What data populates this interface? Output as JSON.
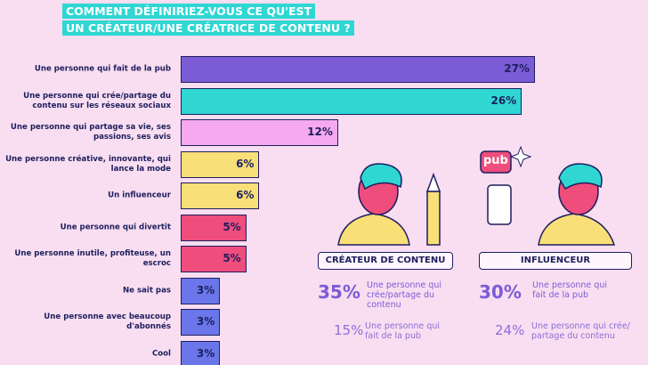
{
  "chart_data": {
    "type": "hbar",
    "title": [
      "COMMENT DÉFINIRIEZ-VOUS CE QU'EST",
      "UN CRÉATEUR/UNE CRÉATRICE DE CONTENU ?"
    ],
    "categories": [
      "Une personne qui fait de la pub",
      "Une personne qui crée/partage du contenu sur les réseaux sociaux",
      "Une personne qui partage sa vie, ses passions, ses avis",
      "Une personne créative, innovante, qui lance la mode",
      "Un influenceur",
      "Une personne qui divertit",
      "Une personne inutile, profiteuse, un escroc",
      "Ne sait pas",
      "Une personne avec beaucoup d'abonnés",
      "Cool"
    ],
    "values": [
      27,
      26,
      12,
      6,
      6,
      5,
      5,
      3,
      3,
      3
    ],
    "value_labels": [
      "27%",
      "26%",
      "12%",
      "6%",
      "6%",
      "5%",
      "5%",
      "3%",
      "3%",
      "3%"
    ],
    "colors": [
      "#7b5cd6",
      "#2fd6d2",
      "#f6a9ee",
      "#f8df78",
      "#f8df78",
      "#ef4d7c",
      "#ef4d7c",
      "#6b76ea",
      "#6b76ea",
      "#6b76ea"
    ]
  },
  "panels": [
    {
      "title": "CRÉATEUR DE CONTENU",
      "stats": [
        {
          "value": "35%",
          "text": "Une personne qui crée/partage du contenu"
        },
        {
          "value": "15%",
          "text": "Une personne qui fait de la pub"
        }
      ]
    },
    {
      "title": "INFLUENCEUR",
      "badge": "pub",
      "stats": [
        {
          "value": "30%",
          "text": "Une personne qui fait de la pub"
        },
        {
          "value": "24%",
          "text": "Une personne qui crée/ partage du contenu"
        }
      ]
    }
  ]
}
